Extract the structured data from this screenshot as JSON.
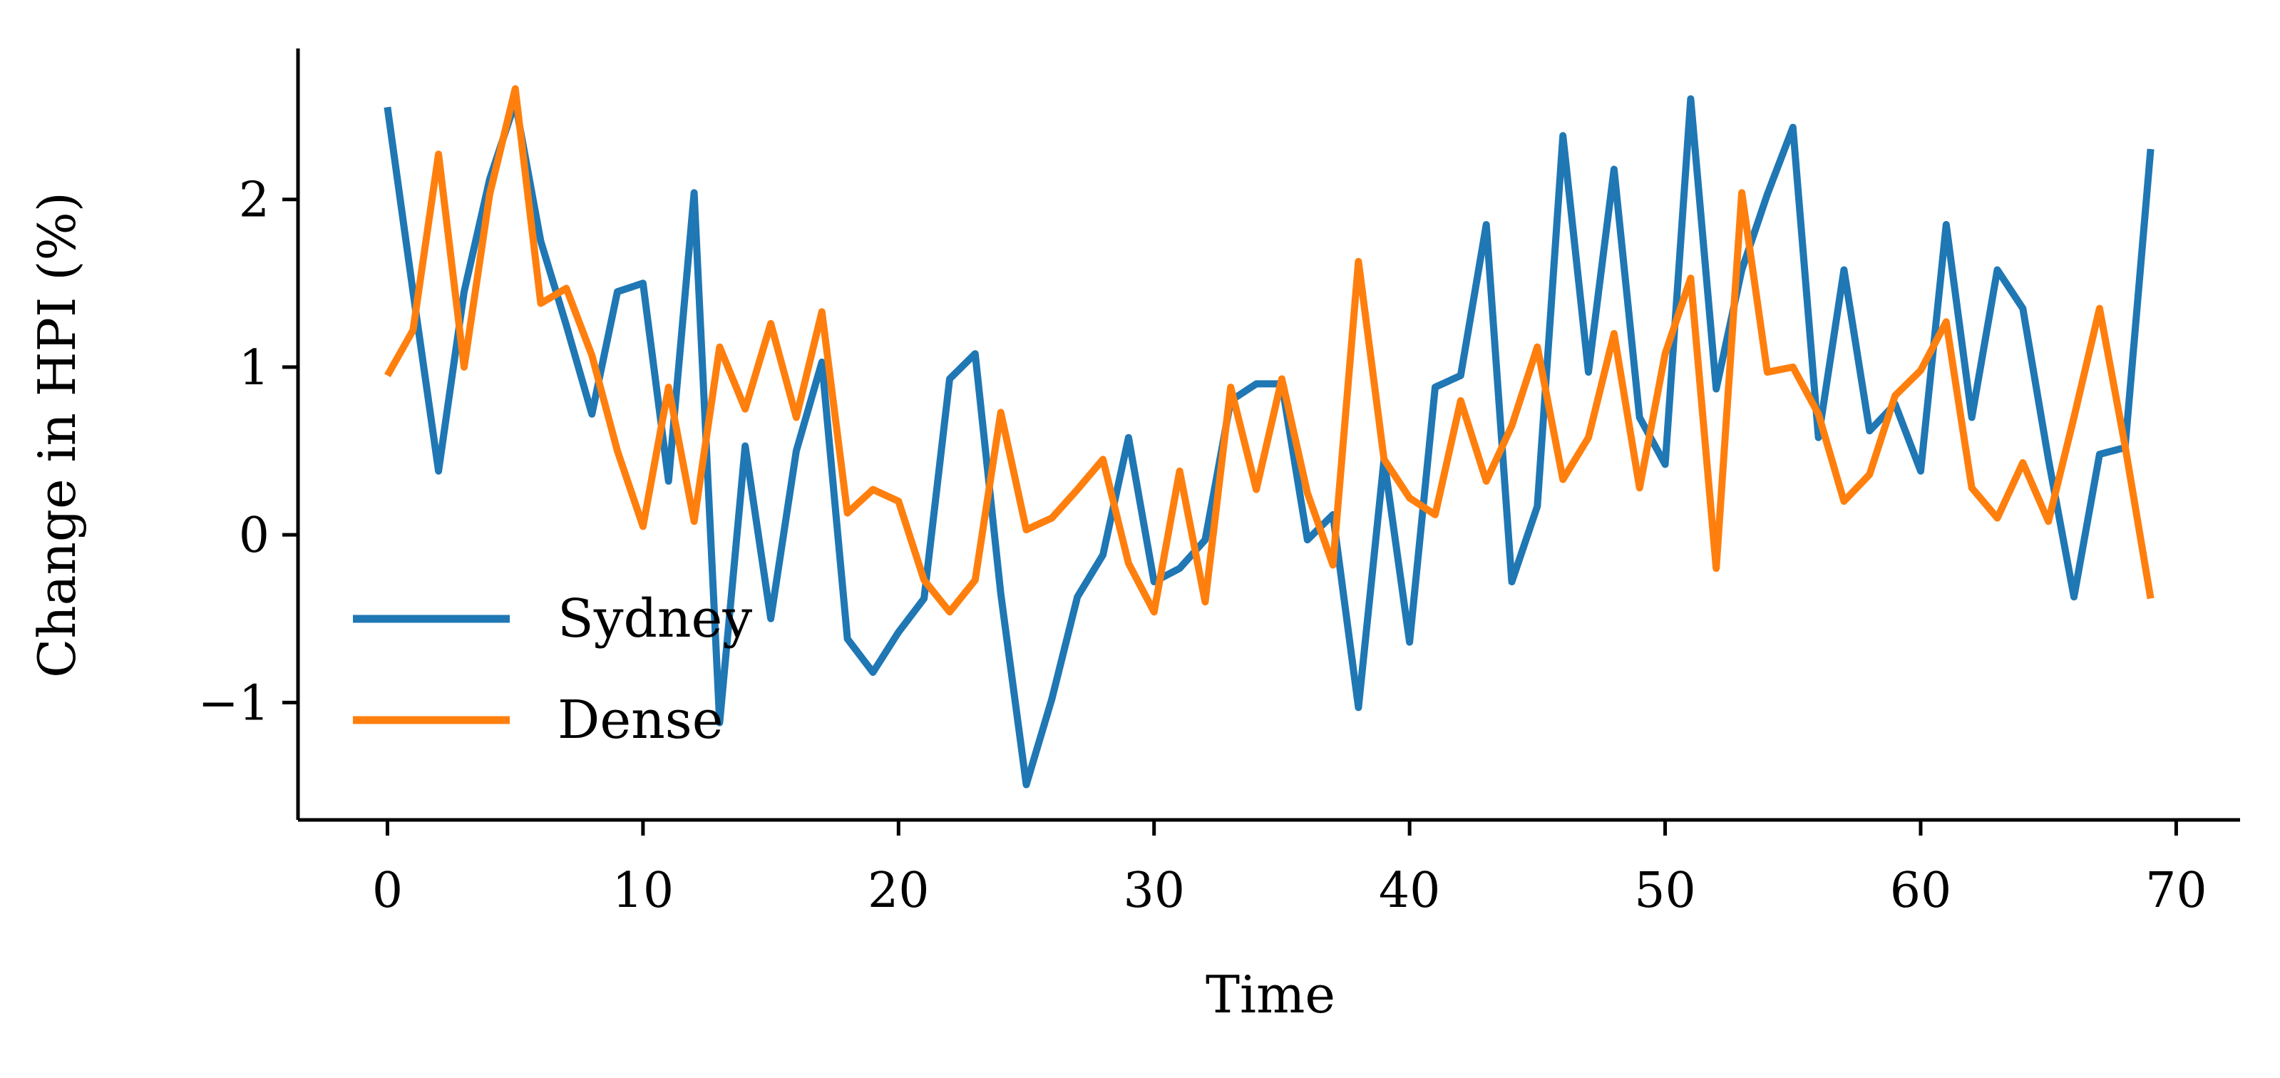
{
  "chart_data": {
    "type": "line",
    "xlabel": "Time",
    "ylabel": "Change in HPI (%)",
    "xlim": [
      -3.5,
      72.5
    ],
    "ylim": [
      -1.7,
      2.9
    ],
    "xticks": [
      0,
      10,
      20,
      30,
      40,
      50,
      60,
      70
    ],
    "xtick_labels": [
      "0",
      "10",
      "20",
      "30",
      "40",
      "50",
      "60",
      "70"
    ],
    "yticks": [
      -1,
      0,
      1,
      2
    ],
    "ytick_labels": [
      "−1",
      "0",
      "1",
      "2"
    ],
    "grid": false,
    "legend_position": "lower-left",
    "spines": [
      "left",
      "bottom"
    ],
    "series": [
      {
        "name": "Sydney",
        "color": "#1f77b4",
        "x": [
          0,
          1,
          2,
          3,
          4,
          5,
          6,
          7,
          8,
          9,
          10,
          11,
          12,
          13,
          14,
          15,
          16,
          17,
          18,
          19,
          20,
          21,
          22,
          23,
          24,
          25,
          26,
          27,
          28,
          29,
          30,
          31,
          32,
          33,
          34,
          35,
          36,
          37,
          38,
          39,
          40,
          41,
          42,
          43,
          44,
          45,
          46,
          47,
          48,
          49,
          50,
          51,
          52,
          53,
          54,
          55,
          56,
          57,
          58,
          59,
          60,
          61,
          62,
          63,
          64,
          65,
          66,
          67,
          68,
          69
        ],
        "values": [
          2.55,
          1.45,
          0.38,
          1.45,
          2.12,
          2.58,
          1.75,
          1.25,
          0.72,
          1.45,
          1.5,
          0.32,
          2.04,
          -1.12,
          0.53,
          -0.5,
          0.5,
          1.03,
          -0.62,
          -0.82,
          -0.58,
          -0.38,
          0.93,
          1.08,
          -0.35,
          -1.49,
          -0.98,
          -0.37,
          -0.12,
          0.58,
          -0.28,
          -0.2,
          -0.03,
          0.8,
          0.9,
          0.9,
          -0.03,
          0.12,
          -1.03,
          0.45,
          -0.64,
          0.88,
          0.95,
          1.85,
          -0.28,
          0.17,
          2.38,
          0.97,
          2.18,
          0.7,
          0.42,
          2.6,
          0.87,
          1.58,
          2.03,
          2.43,
          0.58,
          1.58,
          0.62,
          0.78,
          0.38,
          1.85,
          0.7,
          1.58,
          1.35,
          0.45,
          -0.37,
          0.48,
          0.52,
          2.3
        ]
      },
      {
        "name": "Dense",
        "color": "#ff7f0e",
        "x": [
          0,
          1,
          2,
          3,
          4,
          5,
          6,
          7,
          8,
          9,
          10,
          11,
          12,
          13,
          14,
          15,
          16,
          17,
          18,
          19,
          20,
          21,
          22,
          23,
          24,
          25,
          26,
          27,
          28,
          29,
          30,
          31,
          32,
          33,
          34,
          35,
          36,
          37,
          38,
          39,
          40,
          41,
          42,
          43,
          44,
          45,
          46,
          47,
          48,
          49,
          50,
          51,
          52,
          53,
          54,
          55,
          56,
          57,
          58,
          59,
          60,
          61,
          62,
          63,
          64,
          65,
          66,
          67,
          68,
          69
        ],
        "values": [
          0.95,
          1.22,
          2.27,
          1.0,
          2.03,
          2.66,
          1.38,
          1.47,
          1.07,
          0.5,
          0.05,
          0.88,
          0.08,
          1.12,
          0.75,
          1.26,
          0.7,
          1.33,
          0.13,
          0.27,
          0.2,
          -0.27,
          -0.46,
          -0.27,
          0.73,
          0.03,
          0.1,
          0.27,
          0.45,
          -0.17,
          -0.46,
          0.38,
          -0.4,
          0.88,
          0.27,
          0.93,
          0.25,
          -0.18,
          1.63,
          0.45,
          0.22,
          0.12,
          0.8,
          0.32,
          0.65,
          1.12,
          0.33,
          0.58,
          1.2,
          0.28,
          1.08,
          1.53,
          -0.2,
          2.04,
          0.97,
          1.0,
          0.72,
          0.2,
          0.36,
          0.83,
          0.98,
          1.27,
          0.28,
          0.1,
          0.43,
          0.08,
          0.7,
          1.35,
          0.53,
          -0.38
        ]
      }
    ]
  }
}
